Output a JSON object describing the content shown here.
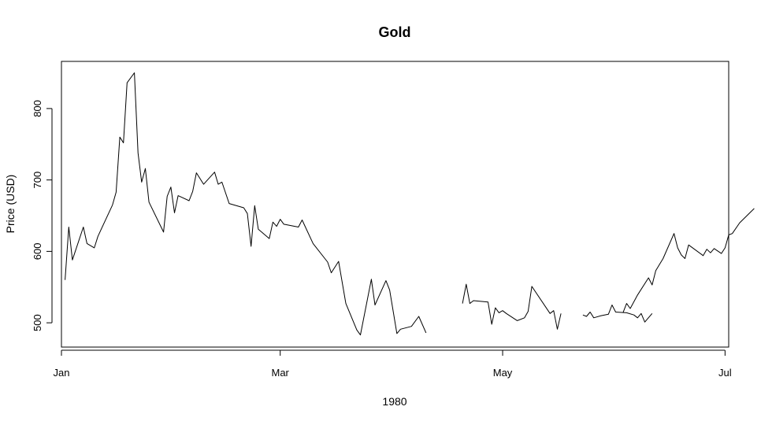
{
  "chart_data": {
    "type": "line",
    "title": "Gold",
    "xlabel": "1980",
    "ylabel": "Price (USD)",
    "xlim": [
      "1980-01-01",
      "1980-07-02"
    ],
    "ylim": [
      466,
      866
    ],
    "x_ticks": [
      {
        "date": "1980-01-01",
        "label": "Jan"
      },
      {
        "date": "1980-03-01",
        "label": "Mar"
      },
      {
        "date": "1980-05-01",
        "label": "May"
      },
      {
        "date": "1980-07-01",
        "label": "Jul"
      }
    ],
    "y_ticks": [
      500,
      600,
      700,
      800
    ],
    "grid": false,
    "series": [
      {
        "values": [
          [
            "1980-01-02",
            560
          ],
          [
            "1980-01-03",
            634
          ],
          [
            "1980-01-04",
            588
          ],
          [
            "1980-01-07",
            634
          ],
          [
            "1980-01-08",
            611
          ],
          [
            "1980-01-10",
            605
          ],
          [
            "1980-01-11",
            621
          ],
          [
            "1980-01-15",
            665
          ],
          [
            "1980-01-16",
            683
          ],
          [
            "1980-01-17",
            760
          ],
          [
            "1980-01-18",
            752
          ],
          [
            "1980-01-19",
            836
          ],
          [
            "1980-01-21",
            850
          ],
          [
            "1980-01-22",
            738
          ],
          [
            "1980-01-23",
            697
          ],
          [
            "1980-01-24",
            716
          ],
          [
            "1980-01-25",
            669
          ],
          [
            "1980-01-29",
            627
          ],
          [
            "1980-01-30",
            677
          ],
          [
            "1980-01-31",
            690
          ],
          [
            "1980-02-01",
            654
          ],
          [
            "1980-02-02",
            678
          ],
          [
            "1980-02-05",
            671
          ],
          [
            "1980-02-06",
            684
          ],
          [
            "1980-02-07",
            710
          ],
          [
            "1980-02-09",
            694
          ],
          [
            "1980-02-12",
            711
          ],
          [
            "1980-02-13",
            694
          ],
          [
            "1980-02-14",
            697
          ],
          [
            "1980-02-16",
            667
          ],
          [
            "1980-02-20",
            661
          ],
          [
            "1980-02-21",
            653
          ],
          [
            "1980-02-22",
            607
          ],
          [
            "1980-02-23",
            664
          ],
          [
            "1980-02-24",
            631
          ],
          [
            "1980-02-27",
            618
          ],
          [
            "1980-02-28",
            641
          ],
          [
            "1980-02-29",
            635
          ],
          [
            "1980-03-01",
            645
          ],
          [
            "1980-03-02",
            638
          ],
          [
            "1980-03-06",
            634
          ],
          [
            "1980-03-07",
            644
          ],
          [
            "1980-03-10",
            611
          ],
          [
            "1980-03-14",
            585
          ],
          [
            "1980-03-15",
            570
          ],
          [
            "1980-03-17",
            586
          ],
          [
            "1980-03-19",
            527
          ],
          [
            "1980-03-22",
            490
          ],
          [
            "1980-03-23",
            483
          ],
          [
            "1980-03-26",
            561
          ],
          [
            "1980-03-27",
            525
          ],
          [
            "1980-03-30",
            559
          ],
          [
            "1980-03-31",
            546
          ],
          [
            "1980-04-02",
            485
          ],
          [
            "1980-04-03",
            491
          ],
          [
            "1980-04-06",
            495
          ],
          [
            "1980-04-08",
            509
          ],
          [
            "1980-04-10",
            486
          ]
        ]
      },
      {
        "values": [
          [
            "1980-04-20",
            527
          ],
          [
            "1980-04-21",
            554
          ],
          [
            "1980-04-22",
            527
          ],
          [
            "1980-04-23",
            531
          ],
          [
            "1980-04-27",
            529
          ],
          [
            "1980-04-28",
            498
          ],
          [
            "1980-04-29",
            521
          ],
          [
            "1980-04-30",
            514
          ],
          [
            "1980-05-01",
            517
          ],
          [
            "1980-05-02",
            513
          ],
          [
            "1980-05-05",
            503
          ],
          [
            "1980-05-07",
            507
          ],
          [
            "1980-05-08",
            516
          ],
          [
            "1980-05-09",
            551
          ],
          [
            "1980-05-14",
            513
          ],
          [
            "1980-05-15",
            517
          ],
          [
            "1980-05-16",
            491
          ],
          [
            "1980-05-17",
            513
          ]
        ]
      },
      {
        "values": [
          [
            "1980-05-23",
            511
          ],
          [
            "1980-05-24",
            509
          ],
          [
            "1980-05-25",
            515
          ],
          [
            "1980-05-26",
            507
          ],
          [
            "1980-05-28",
            510
          ],
          [
            "1980-05-30",
            512
          ],
          [
            "1980-05-31",
            525
          ],
          [
            "1980-06-01",
            515
          ],
          [
            "1980-06-04",
            514
          ],
          [
            "1980-06-06",
            511
          ],
          [
            "1980-06-07",
            507
          ],
          [
            "1980-06-08",
            513
          ],
          [
            "1980-06-09",
            501
          ],
          [
            "1980-06-11",
            513
          ]
        ]
      },
      {
        "values": [
          [
            "1980-06-03",
            514
          ],
          [
            "1980-06-04",
            527
          ],
          [
            "1980-06-05",
            520
          ],
          [
            "1980-06-07",
            539
          ],
          [
            "1980-06-10",
            563
          ],
          [
            "1980-06-11",
            553
          ],
          [
            "1980-06-12",
            573
          ],
          [
            "1980-06-14",
            590
          ],
          [
            "1980-06-17",
            625
          ],
          [
            "1980-06-18",
            605
          ],
          [
            "1980-06-19",
            595
          ],
          [
            "1980-06-20",
            590
          ],
          [
            "1980-06-21",
            609
          ],
          [
            "1980-06-25",
            594
          ],
          [
            "1980-06-26",
            603
          ],
          [
            "1980-06-27",
            598
          ],
          [
            "1980-06-28",
            604
          ],
          [
            "1980-06-30",
            597
          ],
          [
            "1980-07-01",
            605
          ],
          [
            "1980-07-02",
            623
          ],
          [
            "1980-07-03",
            625
          ],
          [
            "1980-07-05",
            640
          ],
          [
            "1980-07-09",
            660
          ]
        ]
      }
    ]
  }
}
